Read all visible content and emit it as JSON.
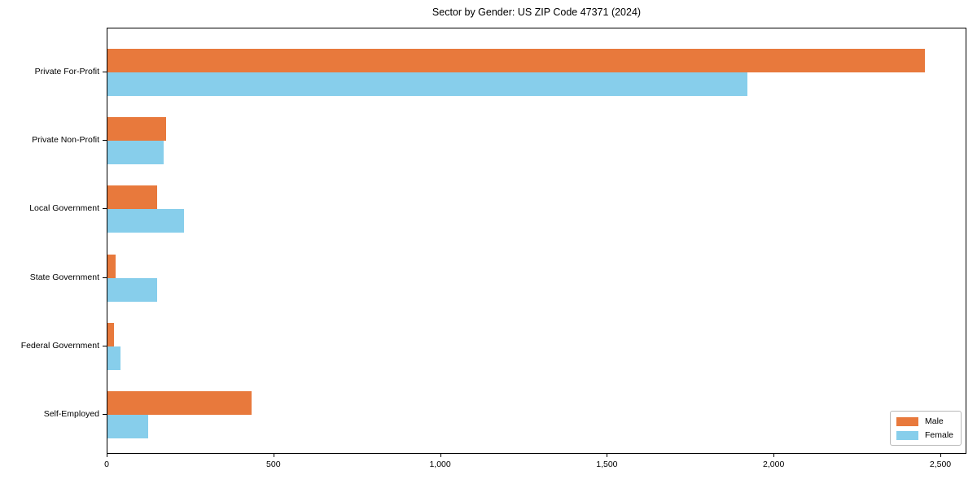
{
  "title": "Sector by Gender: US ZIP Code 47371 (2024)",
  "colors": {
    "male": "#e8793c",
    "female": "#87ceeb",
    "axis": "#000000",
    "legend_border": "#b9b9b9",
    "background": "#ffffff"
  },
  "legend": {
    "position": "lower right",
    "items": [
      {
        "label": "Male",
        "color": "#e8793c"
      },
      {
        "label": "Female",
        "color": "#87ceeb"
      }
    ]
  },
  "chart_data": {
    "type": "bar",
    "orientation": "horizontal",
    "title": "Sector by Gender: US ZIP Code 47371 (2024)",
    "categories": [
      "Private For-Profit",
      "Private Non-Profit",
      "Local Government",
      "State Government",
      "Federal Government",
      "Self-Employed"
    ],
    "series": [
      {
        "name": "Male",
        "color": "#e8793c",
        "values": [
          2450,
          177,
          148,
          24,
          20,
          431
        ]
      },
      {
        "name": "Female",
        "color": "#87ceeb",
        "values": [
          1918,
          168,
          230,
          148,
          38,
          122
        ]
      }
    ],
    "xlabel": "",
    "ylabel": "",
    "xlim": [
      0,
      2578
    ],
    "xticks": [
      0,
      500,
      1000,
      1500,
      2000,
      2500
    ],
    "xtick_labels": [
      "0",
      "500",
      "1,000",
      "1,500",
      "2,000",
      "2,500"
    ],
    "grid": false,
    "legend_position": "lower right"
  }
}
